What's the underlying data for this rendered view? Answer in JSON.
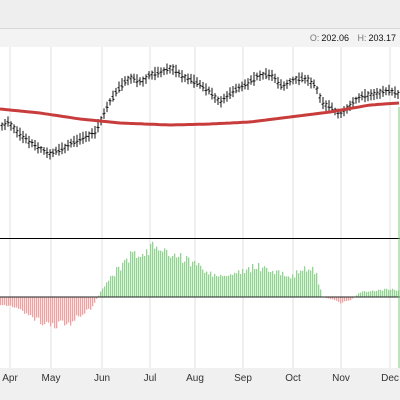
{
  "header": {
    "open_label": "O:",
    "open_value": "202.06",
    "high_label": "H:",
    "high_value": "203.17"
  },
  "colors": {
    "price_bar": "#111111",
    "moving_average": "#c83c3c",
    "histogram_up": "#8fd48f",
    "histogram_down": "#f3a0a0",
    "panel_border": "#000000"
  },
  "chart_data": {
    "type": "bar",
    "x_axis_labels": [
      "Apr",
      "May",
      "Jun",
      "Jul",
      "Aug",
      "Sep",
      "Oct",
      "Nov",
      "Dec"
    ],
    "price_panel": {
      "series": [
        {
          "type": "ohlc"
        },
        {
          "type": "line"
        }
      ]
    },
    "indicator_panel": {
      "type": "histogram",
      "zero_line": true
    }
  }
}
